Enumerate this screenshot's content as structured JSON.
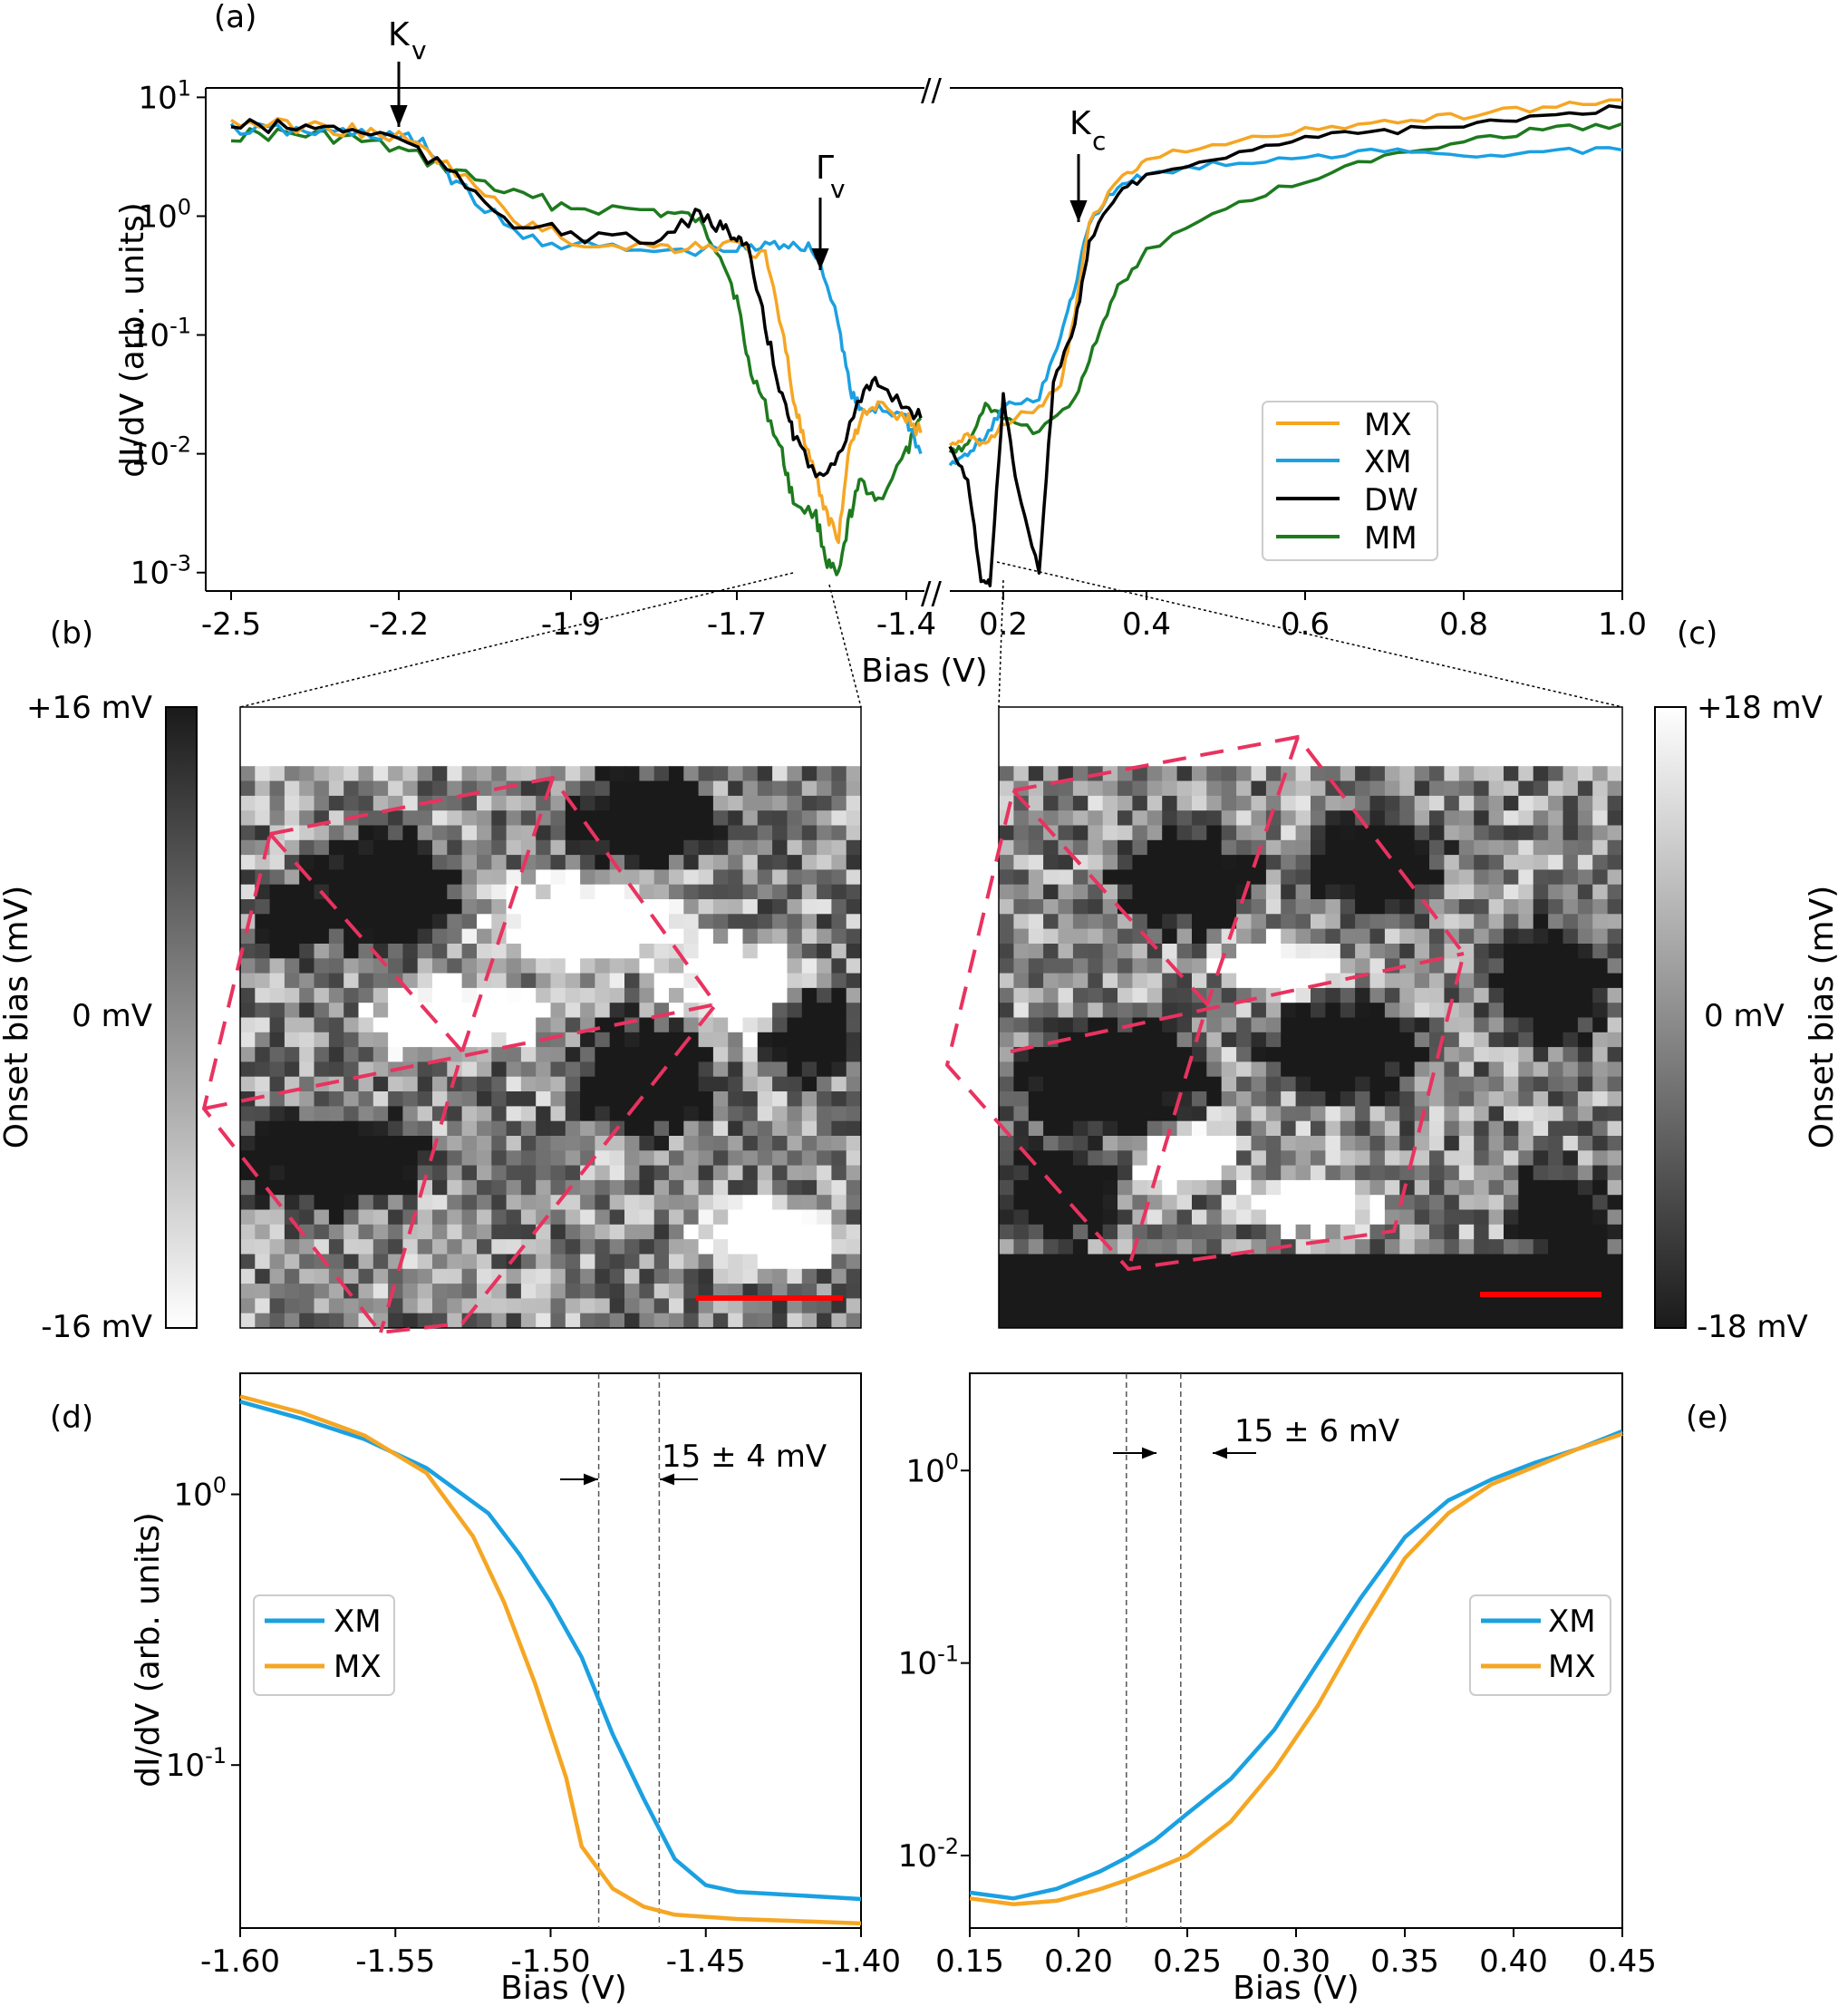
{
  "colors": {
    "MX": "#f5a623",
    "XM": "#1ba1e2",
    "DW": "#000000",
    "MM": "#1e7a1e",
    "overlay": "#e8325f",
    "scalebar": "#ff0000"
  },
  "panels": {
    "a": {
      "label": "(a)",
      "ann_kv": "K",
      "ann_kv_sub": "v",
      "ann_gv": "Γ",
      "ann_gv_sub": "v",
      "ann_kc": "K",
      "ann_kc_sub": "c",
      "break_mark": "//"
    },
    "b": {
      "label": "(b)",
      "cbar_top": "+16 mV",
      "cbar_mid": "0 mV",
      "cbar_bot": "-16 mV",
      "cbar_label": "Onset bias (mV)"
    },
    "c": {
      "label": "(c)",
      "cbar_top": "+18 mV",
      "cbar_mid": "0 mV",
      "cbar_bot": "-18 mV",
      "cbar_label": "Onset bias (mV)"
    },
    "d": {
      "label": "(d)",
      "annotation": "15 ± 4 mV"
    },
    "e": {
      "label": "(e)",
      "annotation": "15 ± 6 mV"
    }
  },
  "chart_data": [
    {
      "panel": "a",
      "type": "line",
      "ylabel": "dI/dV (arb. units)",
      "xlabel": "Bias (V)",
      "yscale": "log",
      "ylim": [
        0.0007,
        12
      ],
      "ytick_labels": [
        [
          "10",
          "1"
        ],
        [
          "10",
          "0"
        ],
        [
          "10",
          "-1"
        ],
        [
          "10",
          "-2"
        ],
        [
          "10",
          "-3"
        ]
      ],
      "broken_x_axis": true,
      "xlim_left": [
        -2.5,
        -1.35
      ],
      "xlim_right": [
        0.08,
        1.0
      ],
      "xtick_labels_left": [
        "-2.5",
        "-2.2",
        "-1.9",
        "-1.7",
        "-1.4"
      ],
      "xtick_labels_right": [
        "0.2",
        "0.4",
        "0.6",
        "0.8",
        "1.0"
      ],
      "legend": [
        "MX",
        "XM",
        "DW",
        "MM"
      ],
      "legend_position": "lower-right",
      "series": [
        {
          "name": "MX",
          "left": [
            [
              -2.5,
              6.2
            ],
            [
              -2.4,
              5.8
            ],
            [
              -2.3,
              5.4
            ],
            [
              -2.2,
              4.6
            ],
            [
              -2.1,
              2.4
            ],
            [
              -2.0,
              0.95
            ],
            [
              -1.9,
              0.62
            ],
            [
              -1.8,
              0.55
            ],
            [
              -1.75,
              0.56
            ],
            [
              -1.7,
              0.58
            ],
            [
              -1.65,
              0.45
            ],
            [
              -1.62,
              0.12
            ],
            [
              -1.6,
              0.03
            ],
            [
              -1.58,
              0.012
            ],
            [
              -1.56,
              0.006
            ],
            [
              -1.54,
              0.003
            ],
            [
              -1.52,
              0.002
            ],
            [
              -1.5,
              0.012
            ],
            [
              -1.48,
              0.02
            ],
            [
              -1.45,
              0.025
            ],
            [
              -1.4,
              0.02
            ],
            [
              -1.36,
              0.015
            ]
          ],
          "right": [
            [
              0.08,
              0.012
            ],
            [
              0.12,
              0.014
            ],
            [
              0.16,
              0.012
            ],
            [
              0.2,
              0.018
            ],
            [
              0.25,
              0.025
            ],
            [
              0.28,
              0.04
            ],
            [
              0.3,
              0.15
            ],
            [
              0.32,
              0.9
            ],
            [
              0.36,
              2.0
            ],
            [
              0.4,
              3.0
            ],
            [
              0.5,
              4.2
            ],
            [
              0.6,
              5.2
            ],
            [
              0.7,
              6.2
            ],
            [
              0.8,
              7.0
            ],
            [
              0.9,
              8.2
            ],
            [
              1.0,
              9.5
            ]
          ]
        },
        {
          "name": "XM",
          "left": [
            [
              -2.5,
              5.4
            ],
            [
              -2.4,
              5.2
            ],
            [
              -2.3,
              5.0
            ],
            [
              -2.2,
              4.8
            ],
            [
              -2.15,
              3.8
            ],
            [
              -2.1,
              1.9
            ],
            [
              -2.0,
              0.72
            ],
            [
              -1.9,
              0.56
            ],
            [
              -1.8,
              0.5
            ],
            [
              -1.7,
              0.52
            ],
            [
              -1.65,
              0.55
            ],
            [
              -1.6,
              0.6
            ],
            [
              -1.56,
              0.5
            ],
            [
              -1.52,
              0.13
            ],
            [
              -1.5,
              0.035
            ],
            [
              -1.48,
              0.022
            ],
            [
              -1.45,
              0.025
            ],
            [
              -1.4,
              0.02
            ],
            [
              -1.36,
              0.01
            ]
          ],
          "right": [
            [
              0.08,
              0.008
            ],
            [
              0.12,
              0.01
            ],
            [
              0.16,
              0.014
            ],
            [
              0.2,
              0.025
            ],
            [
              0.25,
              0.03
            ],
            [
              0.28,
              0.1
            ],
            [
              0.3,
              0.25
            ],
            [
              0.32,
              0.9
            ],
            [
              0.36,
              1.8
            ],
            [
              0.4,
              2.3
            ],
            [
              0.5,
              2.8
            ],
            [
              0.6,
              3.2
            ],
            [
              0.7,
              3.5
            ],
            [
              0.8,
              3.3
            ],
            [
              0.9,
              3.5
            ],
            [
              1.0,
              3.6
            ]
          ]
        },
        {
          "name": "DW",
          "left": [
            [
              -2.5,
              5.8
            ],
            [
              -2.4,
              5.6
            ],
            [
              -2.3,
              5.5
            ],
            [
              -2.2,
              4.5
            ],
            [
              -2.1,
              2.1
            ],
            [
              -2.0,
              0.9
            ],
            [
              -1.9,
              0.7
            ],
            [
              -1.8,
              0.6
            ],
            [
              -1.75,
              1.0
            ],
            [
              -1.72,
              0.8
            ],
            [
              -1.7,
              0.7
            ],
            [
              -1.68,
              0.5
            ],
            [
              -1.65,
              0.12
            ],
            [
              -1.62,
              0.03
            ],
            [
              -1.6,
              0.015
            ],
            [
              -1.56,
              0.006
            ],
            [
              -1.52,
              0.01
            ],
            [
              -1.48,
              0.03
            ],
            [
              -1.45,
              0.04
            ],
            [
              -1.4,
              0.025
            ],
            [
              -1.36,
              0.02
            ]
          ],
          "right": [
            [
              0.08,
              0.012
            ],
            [
              0.12,
              0.006
            ],
            [
              0.15,
              0.0009
            ],
            [
              0.17,
              0.0008
            ],
            [
              0.2,
              0.03
            ],
            [
              0.22,
              0.005
            ],
            [
              0.25,
              0.001
            ],
            [
              0.27,
              0.04
            ],
            [
              0.3,
              0.12
            ],
            [
              0.32,
              0.6
            ],
            [
              0.36,
              1.6
            ],
            [
              0.4,
              2.2
            ],
            [
              0.5,
              3.3
            ],
            [
              0.6,
              4.5
            ],
            [
              0.7,
              5.2
            ],
            [
              0.8,
              5.7
            ],
            [
              0.9,
              7.0
            ],
            [
              1.0,
              8.2
            ]
          ]
        },
        {
          "name": "MM",
          "left": [
            [
              -2.5,
              4.8
            ],
            [
              -2.4,
              4.9
            ],
            [
              -2.3,
              4.6
            ],
            [
              -2.2,
              3.6
            ],
            [
              -2.1,
              2.4
            ],
            [
              -2.0,
              1.5
            ],
            [
              -1.9,
              1.2
            ],
            [
              -1.8,
              1.1
            ],
            [
              -1.75,
              0.95
            ],
            [
              -1.72,
              0.5
            ],
            [
              -1.7,
              0.2
            ],
            [
              -1.68,
              0.06
            ],
            [
              -1.65,
              0.025
            ],
            [
              -1.62,
              0.01
            ],
            [
              -1.6,
              0.004
            ],
            [
              -1.56,
              0.003
            ],
            [
              -1.54,
              0.0012
            ],
            [
              -1.52,
              0.0009
            ],
            [
              -1.5,
              0.003
            ],
            [
              -1.48,
              0.006
            ],
            [
              -1.45,
              0.004
            ],
            [
              -1.4,
              0.01
            ],
            [
              -1.36,
              0.02
            ]
          ],
          "right": [
            [
              0.08,
              0.01
            ],
            [
              0.12,
              0.012
            ],
            [
              0.16,
              0.025
            ],
            [
              0.2,
              0.02
            ],
            [
              0.25,
              0.015
            ],
            [
              0.3,
              0.03
            ],
            [
              0.33,
              0.09
            ],
            [
              0.36,
              0.25
            ],
            [
              0.4,
              0.5
            ],
            [
              0.5,
              1.2
            ],
            [
              0.6,
              2.0
            ],
            [
              0.7,
              3.2
            ],
            [
              0.8,
              4.4
            ],
            [
              0.9,
              5.3
            ],
            [
              1.0,
              6.0
            ]
          ]
        }
      ]
    },
    {
      "panel": "d",
      "type": "line",
      "ylabel": "dI/dV (arb. units)",
      "xlabel": "Bias (V)",
      "yscale": "log",
      "ylim": [
        0.025,
        2.8
      ],
      "xlim": [
        -1.6,
        -1.4
      ],
      "xticks": [
        -1.6,
        -1.55,
        -1.5,
        -1.45,
        -1.4
      ],
      "xtick_labels": [
        "-1.60",
        "-1.55",
        "-1.50",
        "-1.45",
        "-1.40"
      ],
      "ytick_labels": [
        [
          "10",
          "0"
        ],
        [
          "10",
          "-1"
        ]
      ],
      "vlines": [
        -1.4845,
        -1.465
      ],
      "legend": [
        "XM",
        "MX"
      ],
      "legend_position": "center-left",
      "series": [
        {
          "name": "XM",
          "points": [
            [
              -1.6,
              2.2
            ],
            [
              -1.58,
              1.9
            ],
            [
              -1.56,
              1.6
            ],
            [
              -1.54,
              1.25
            ],
            [
              -1.52,
              0.85
            ],
            [
              -1.51,
              0.6
            ],
            [
              -1.5,
              0.4
            ],
            [
              -1.49,
              0.25
            ],
            [
              -1.48,
              0.13
            ],
            [
              -1.47,
              0.075
            ],
            [
              -1.46,
              0.045
            ],
            [
              -1.45,
              0.036
            ],
            [
              -1.44,
              0.034
            ],
            [
              -1.42,
              0.033
            ],
            [
              -1.4,
              0.032
            ]
          ]
        },
        {
          "name": "MX",
          "points": [
            [
              -1.6,
              2.3
            ],
            [
              -1.58,
              2.0
            ],
            [
              -1.56,
              1.65
            ],
            [
              -1.54,
              1.2
            ],
            [
              -1.525,
              0.7
            ],
            [
              -1.515,
              0.4
            ],
            [
              -1.505,
              0.2
            ],
            [
              -1.495,
              0.09
            ],
            [
              -1.49,
              0.05
            ],
            [
              -1.48,
              0.035
            ],
            [
              -1.47,
              0.03
            ],
            [
              -1.46,
              0.028
            ],
            [
              -1.44,
              0.027
            ],
            [
              -1.42,
              0.0265
            ],
            [
              -1.4,
              0.026
            ]
          ]
        }
      ]
    },
    {
      "panel": "e",
      "type": "line",
      "ylabel": "",
      "xlabel": "Bias (V)",
      "yscale": "log",
      "ylim": [
        0.0042,
        3.2
      ],
      "xlim": [
        0.15,
        0.45
      ],
      "xticks": [
        0.15,
        0.2,
        0.25,
        0.3,
        0.35,
        0.4,
        0.45
      ],
      "xtick_labels": [
        "0.15",
        "0.20",
        "0.25",
        "0.30",
        "0.35",
        "0.40",
        "0.45"
      ],
      "ytick_labels": [
        [
          "10",
          "0"
        ],
        [
          "10",
          "-1"
        ],
        [
          "10",
          "-2"
        ]
      ],
      "vlines": [
        0.222,
        0.247
      ],
      "legend": [
        "XM",
        "MX"
      ],
      "legend_position": "center-right",
      "series": [
        {
          "name": "XM",
          "points": [
            [
              0.15,
              0.0065
            ],
            [
              0.17,
              0.0062
            ],
            [
              0.19,
              0.0066
            ],
            [
              0.21,
              0.008
            ],
            [
              0.222,
              0.0095
            ],
            [
              0.235,
              0.012
            ],
            [
              0.25,
              0.0165
            ],
            [
              0.27,
              0.025
            ],
            [
              0.29,
              0.045
            ],
            [
              0.31,
              0.1
            ],
            [
              0.33,
              0.22
            ],
            [
              0.35,
              0.45
            ],
            [
              0.37,
              0.7
            ],
            [
              0.39,
              0.9
            ],
            [
              0.41,
              1.1
            ],
            [
              0.43,
              1.3
            ],
            [
              0.45,
              1.6
            ]
          ]
        },
        {
          "name": "MX",
          "points": [
            [
              0.15,
              0.0058
            ],
            [
              0.17,
              0.0058
            ],
            [
              0.19,
              0.006
            ],
            [
              0.21,
              0.0068
            ],
            [
              0.222,
              0.0075
            ],
            [
              0.235,
              0.0085
            ],
            [
              0.25,
              0.01
            ],
            [
              0.27,
              0.015
            ],
            [
              0.29,
              0.028
            ],
            [
              0.31,
              0.06
            ],
            [
              0.33,
              0.15
            ],
            [
              0.35,
              0.35
            ],
            [
              0.37,
              0.6
            ],
            [
              0.39,
              0.85
            ],
            [
              0.41,
              1.05
            ],
            [
              0.43,
              1.3
            ],
            [
              0.45,
              1.55
            ]
          ]
        }
      ]
    }
  ]
}
